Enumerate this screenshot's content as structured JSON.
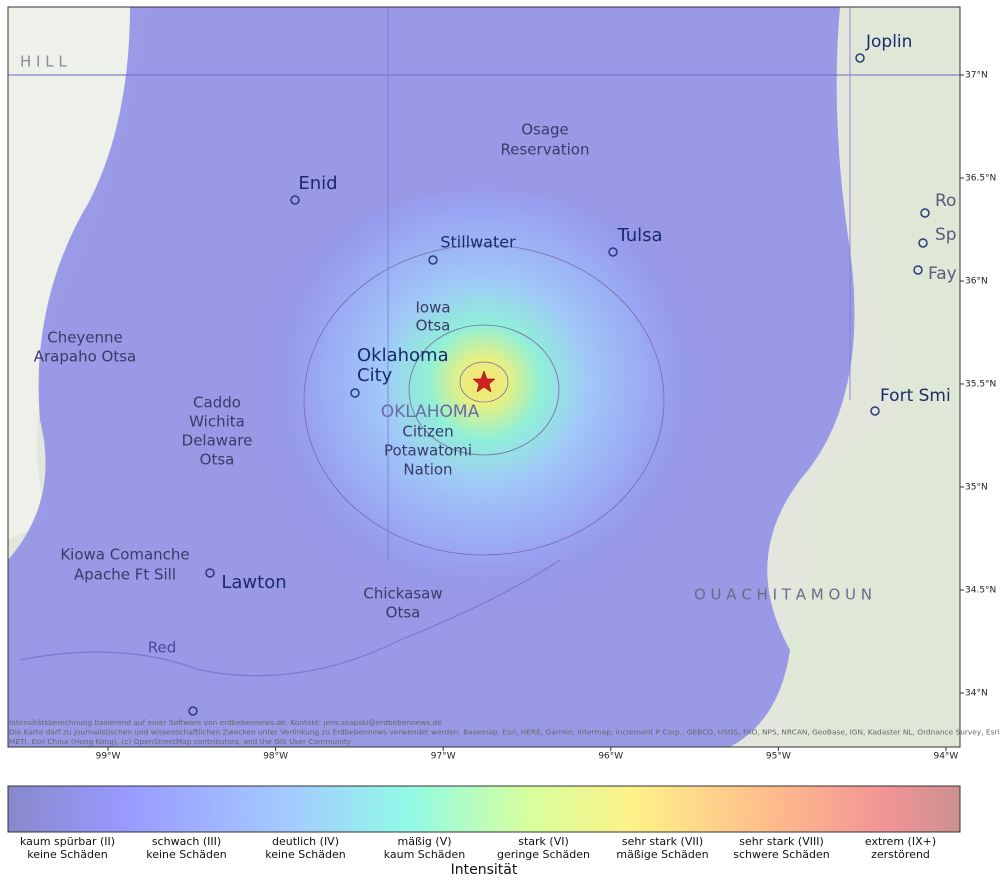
{
  "map": {
    "places": [
      [
        "H I L L"
      ],
      [
        "Joplin"
      ],
      [
        "Osage",
        "Reservation"
      ],
      [
        "Enid"
      ],
      [
        "Stillwater"
      ],
      [
        "Tulsa"
      ],
      [
        "Iowa",
        "Otsa"
      ],
      [
        "Cheyenne",
        "Arapaho Otsa"
      ],
      [
        "Oklahoma",
        "City"
      ],
      [
        "OKLAHOMA"
      ],
      [
        "Caddo",
        "Wichita",
        "Delaware",
        "Otsa"
      ],
      [
        "Citizen",
        "Potawatomi",
        "Nation"
      ],
      [
        "Kiowa Comanche",
        "Apache  Ft Sill"
      ],
      [
        "Lawton"
      ],
      [
        "Chickasaw",
        "Otsa"
      ],
      [
        "O U A C H I T A   M O U N"
      ],
      [
        "Red"
      ],
      [
        "Fort Smi"
      ],
      [
        "Ro"
      ],
      [
        "Sp"
      ],
      [
        "Fay"
      ]
    ],
    "lon_lim": [
      -99.597,
      -93.916
    ],
    "lat_lim": [
      33.738,
      37.33
    ],
    "lon_ticks": [
      {
        "value": -99,
        "label": "99°W"
      },
      {
        "value": -98,
        "label": "98°W"
      },
      {
        "value": -97,
        "label": "97°W"
      },
      {
        "value": -96,
        "label": "96°W"
      },
      {
        "value": -95,
        "label": "95°W"
      },
      {
        "value": -94,
        "label": "94°W"
      }
    ],
    "lat_ticks": [
      {
        "value": 37,
        "label": "37°N"
      },
      {
        "value": 36.5,
        "label": "36.5°N"
      },
      {
        "value": 36,
        "label": "36°N"
      },
      {
        "value": 35.5,
        "label": "35.5°N"
      },
      {
        "value": 35,
        "label": "35°N"
      },
      {
        "value": 34.5,
        "label": "34.5°N"
      },
      {
        "value": 34,
        "label": "34°N"
      }
    ],
    "attribution": [
      "Intensitätsberechnung basierend auf einer Software von erdbebennews.de. Kontakt: jens.skapski@erdbebennews.de",
      "Die Karte darf zu journalistischen und wissenschaftlichen Zwecken unter Verlinkung zu Erdbebennews verwendet werden. Basemap: Esri, HERE, Garmin, Intermap, increment P Corp., GEBCO, USGS, FAO, NPS, NRCAN, GeoBase, IGN, Kadaster NL, Ordnance Survey, Esri Japan,",
      "METI, Esri China (Hong Kong), (c) OpenStreetMap contributors, and the GIS User Community"
    ]
  },
  "legend": {
    "title": "Intensität",
    "levels": [
      [
        "kaum spürbar (II)",
        "keine Schäden"
      ],
      [
        "schwach (III)",
        "keine Schäden"
      ],
      [
        "deutlich (IV)",
        "keine Schäden"
      ],
      [
        "mäßig (V)",
        "kaum Schäden"
      ],
      [
        "stark (VI)",
        "geringe Schäden"
      ],
      [
        "sehr stark (VII)",
        "mäßige Schäden"
      ],
      [
        "sehr stark (VIII)",
        "schwere Schäden"
      ],
      [
        "extrem (IX+)",
        "zerstörend"
      ]
    ]
  }
}
